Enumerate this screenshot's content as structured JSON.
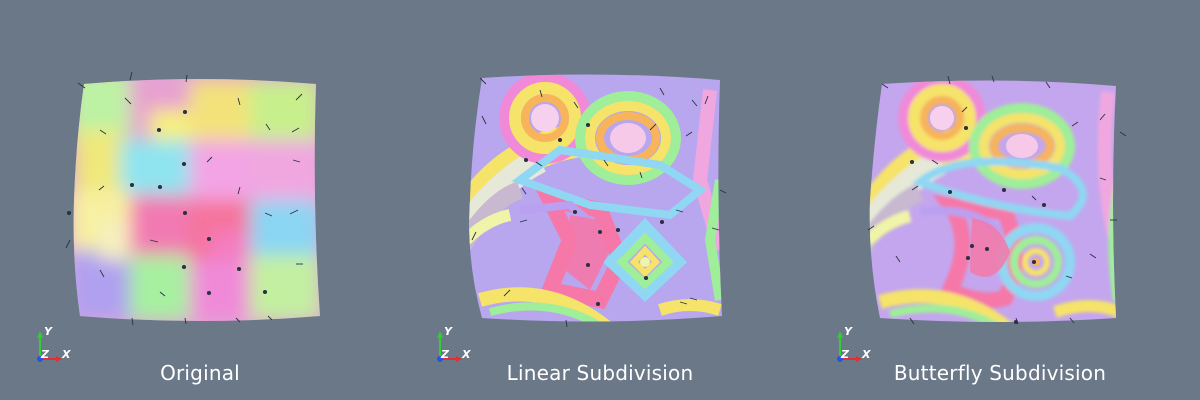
{
  "window": {
    "background": "#6b7888"
  },
  "viewports": [
    {
      "id": "original",
      "label": "Original",
      "style": "blocky",
      "axes": {
        "x": "X",
        "y": "Y",
        "z": "Z"
      }
    },
    {
      "id": "linear",
      "label": "Linear Subdivision",
      "style": "contour-linear",
      "axes": {
        "x": "X",
        "y": "Y",
        "z": "Z"
      }
    },
    {
      "id": "butterfly",
      "label": "Butterfly Subdivision",
      "style": "contour-smooth",
      "axes": {
        "x": "X",
        "y": "Y",
        "z": "Z"
      }
    }
  ],
  "palette": [
    "#f0f4a8",
    "#f7c9e8",
    "#f08ad8",
    "#f578a8",
    "#b9a0f0",
    "#8fd7f2",
    "#9fee9a",
    "#f5e36a",
    "#f8b45a",
    "#ffffff"
  ],
  "axis_colors": {
    "x": "#e23030",
    "y": "#30d030",
    "z": "#3050e0"
  }
}
